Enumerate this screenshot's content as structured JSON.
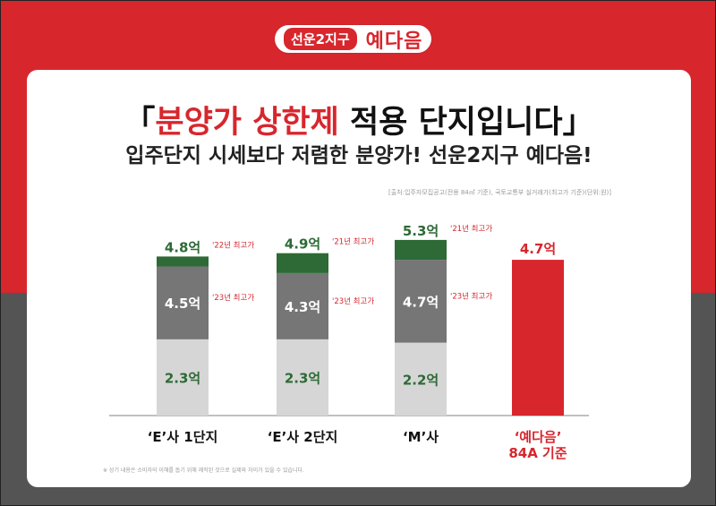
{
  "header": {
    "logo_sub": "선운2지구",
    "logo_main": "예다음"
  },
  "headline": {
    "open_bracket": "「",
    "red_text": "분양가 상한제",
    "rest_text": " 적용 단지입니다",
    "close_bracket": "」"
  },
  "subhead": "입주단지 시세보다 저렴한 분양가! 선운2지구 예다음!",
  "source_note": "[출처:입주자모집공고(전용 84㎡ 기준), 국토교통부 실거래가(최고가 기준)(단위:원)]",
  "footnote": "※ 상기 내용은 소비자의 이해를 돕기 위해 제작된 것으로 실제와 차이가 있을 수 있습니다.",
  "colors": {
    "red": "#d8262d",
    "dark_green": "#2d6a35",
    "mid_gray": "#767676",
    "light_gray": "#d6d6d6",
    "bottom_bg": "#545454"
  },
  "chart_data": {
    "type": "bar",
    "stacking": "overlapping-stacked",
    "unit": "억",
    "categories": [
      {
        "label": "‘E’사 1단지",
        "sub": "",
        "highlight": false
      },
      {
        "label": "‘E’사 2단지",
        "sub": "",
        "highlight": false
      },
      {
        "label": "‘M’사",
        "sub": "",
        "highlight": false
      },
      {
        "label": "‘예다음’",
        "sub": "84A 기준",
        "highlight": true
      }
    ],
    "segments": [
      [
        {
          "value": 2.3,
          "label": "2.3억",
          "color": "light_gray",
          "note": ""
        },
        {
          "value": 4.5,
          "label": "4.5억",
          "color": "mid_gray",
          "note": "'23년 최고가"
        },
        {
          "value": 4.8,
          "label": "4.8억",
          "color": "dark_green",
          "note": "'22년 최고가"
        }
      ],
      [
        {
          "value": 2.3,
          "label": "2.3억",
          "color": "light_gray",
          "note": ""
        },
        {
          "value": 4.3,
          "label": "4.3억",
          "color": "mid_gray",
          "note": "'23년 최고가"
        },
        {
          "value": 4.9,
          "label": "4.9억",
          "color": "dark_green",
          "note": "'21년 최고가"
        }
      ],
      [
        {
          "value": 2.2,
          "label": "2.2억",
          "color": "light_gray",
          "note": ""
        },
        {
          "value": 4.7,
          "label": "4.7억",
          "color": "mid_gray",
          "note": "'23년 최고가"
        },
        {
          "value": 5.3,
          "label": "5.3억",
          "color": "dark_green",
          "note": "'21년 최고가"
        }
      ],
      [
        {
          "value": 4.7,
          "label": "4.7억",
          "color": "red",
          "note": ""
        }
      ]
    ]
  }
}
